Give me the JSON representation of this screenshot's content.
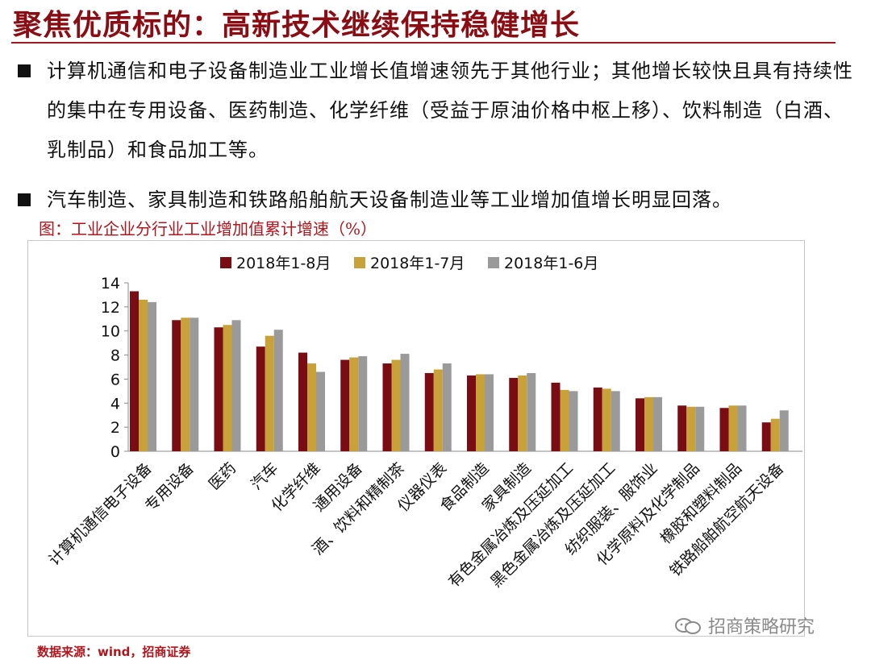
{
  "header": {
    "title": "聚焦优质标的：高新技术继续保持稳健增长"
  },
  "bullets": [
    {
      "text": "计算机通信和电子设备制造业工业增长值增速领先于其他行业；其他增长较快且具有持续性的集中在专用设备、医药制造、化学纤维（受益于原油价格中枢上移）、饮料制造（白酒、乳制品）和食品加工等。"
    },
    {
      "text": "汽车制造、家具制造和铁路船舶航天设备制造业等工业增加值增长明显回落。"
    }
  ],
  "figure": {
    "caption": "图：工业企业分行业工业增加值累计增速（%）"
  },
  "chart_data": {
    "type": "bar",
    "title": "",
    "xlabel": "",
    "ylabel": "",
    "ylim": [
      0,
      14
    ],
    "yticks": [
      "0",
      "2",
      "4",
      "6",
      "8",
      "10",
      "12",
      "14"
    ],
    "grid": false,
    "legend_position": "top",
    "categories": [
      "计算机通信电子设备",
      "专用设备",
      "医药",
      "汽车",
      "化学纤维",
      "通用设备",
      "酒、饮料和精制茶",
      "仪器仪表",
      "食品制造",
      "家具制造",
      "有色金属冶炼及压延加工",
      "黑色金属冶炼及压延加工",
      "纺织服装、服饰业",
      "化学原料及化学制品",
      "橡胶和塑料制品",
      "铁路船舶航空航天设备"
    ],
    "series": [
      {
        "name": "2018年1-8月",
        "color": "#7a0c14",
        "values": [
          13.3,
          10.9,
          10.3,
          8.7,
          8.2,
          7.6,
          7.3,
          6.5,
          6.3,
          6.1,
          5.7,
          5.3,
          4.4,
          3.8,
          3.6,
          2.4
        ]
      },
      {
        "name": "2018年1-7月",
        "color": "#c8a238",
        "values": [
          12.6,
          11.1,
          10.5,
          9.6,
          7.3,
          7.8,
          7.6,
          6.8,
          6.4,
          6.3,
          5.1,
          5.2,
          4.5,
          3.7,
          3.8,
          2.7
        ]
      },
      {
        "name": "2018年1-6月",
        "color": "#9a9a9a",
        "values": [
          12.4,
          11.1,
          10.9,
          10.1,
          6.6,
          7.9,
          8.1,
          7.3,
          6.4,
          6.5,
          5.0,
          5.0,
          4.5,
          3.7,
          3.8,
          3.4
        ]
      }
    ]
  },
  "footer": {
    "source": "数据来源：wind，招商证券",
    "watermark": "招商策略研究",
    "watermark_icon": "wechat-icon"
  }
}
